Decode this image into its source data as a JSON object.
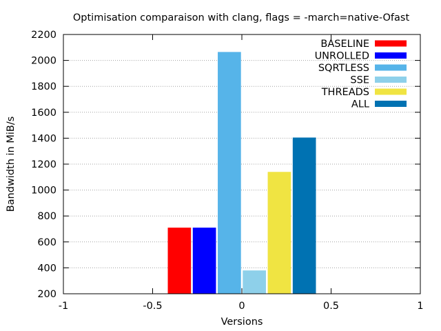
{
  "chart_data": {
    "type": "bar",
    "title": "Optimisation comparaison with clang, flags = -march=native-Ofast",
    "xlabel": "Versions",
    "ylabel": "Bandwidth in MiB/s",
    "xlim": [
      -1,
      1
    ],
    "ylim": [
      200,
      2200
    ],
    "xticks": [
      "-1",
      "-0.5",
      "0",
      "0.5",
      "1"
    ],
    "yticks": [
      "200",
      "400",
      "600",
      "800",
      "1000",
      "1200",
      "1400",
      "1600",
      "1800",
      "2000",
      "2200"
    ],
    "grid": "horizontal dotted",
    "legend_position": "top-right",
    "series": [
      {
        "name": "BASELINE",
        "x": -0.35,
        "value": 710,
        "color": "#ff0000"
      },
      {
        "name": "UNROLLED",
        "x": -0.21,
        "value": 710,
        "color": "#0000ff"
      },
      {
        "name": "SQRTLESS",
        "x": -0.07,
        "value": 2065,
        "color": "#56b4e9"
      },
      {
        "name": "SSE",
        "x": 0.07,
        "value": 380,
        "color": "#8ed0ea"
      },
      {
        "name": "THREADS",
        "x": 0.21,
        "value": 1140,
        "color": "#f0e442"
      },
      {
        "name": "ALL",
        "x": 0.35,
        "value": 1405,
        "color": "#0072b2"
      }
    ],
    "bar_width": 0.13
  }
}
